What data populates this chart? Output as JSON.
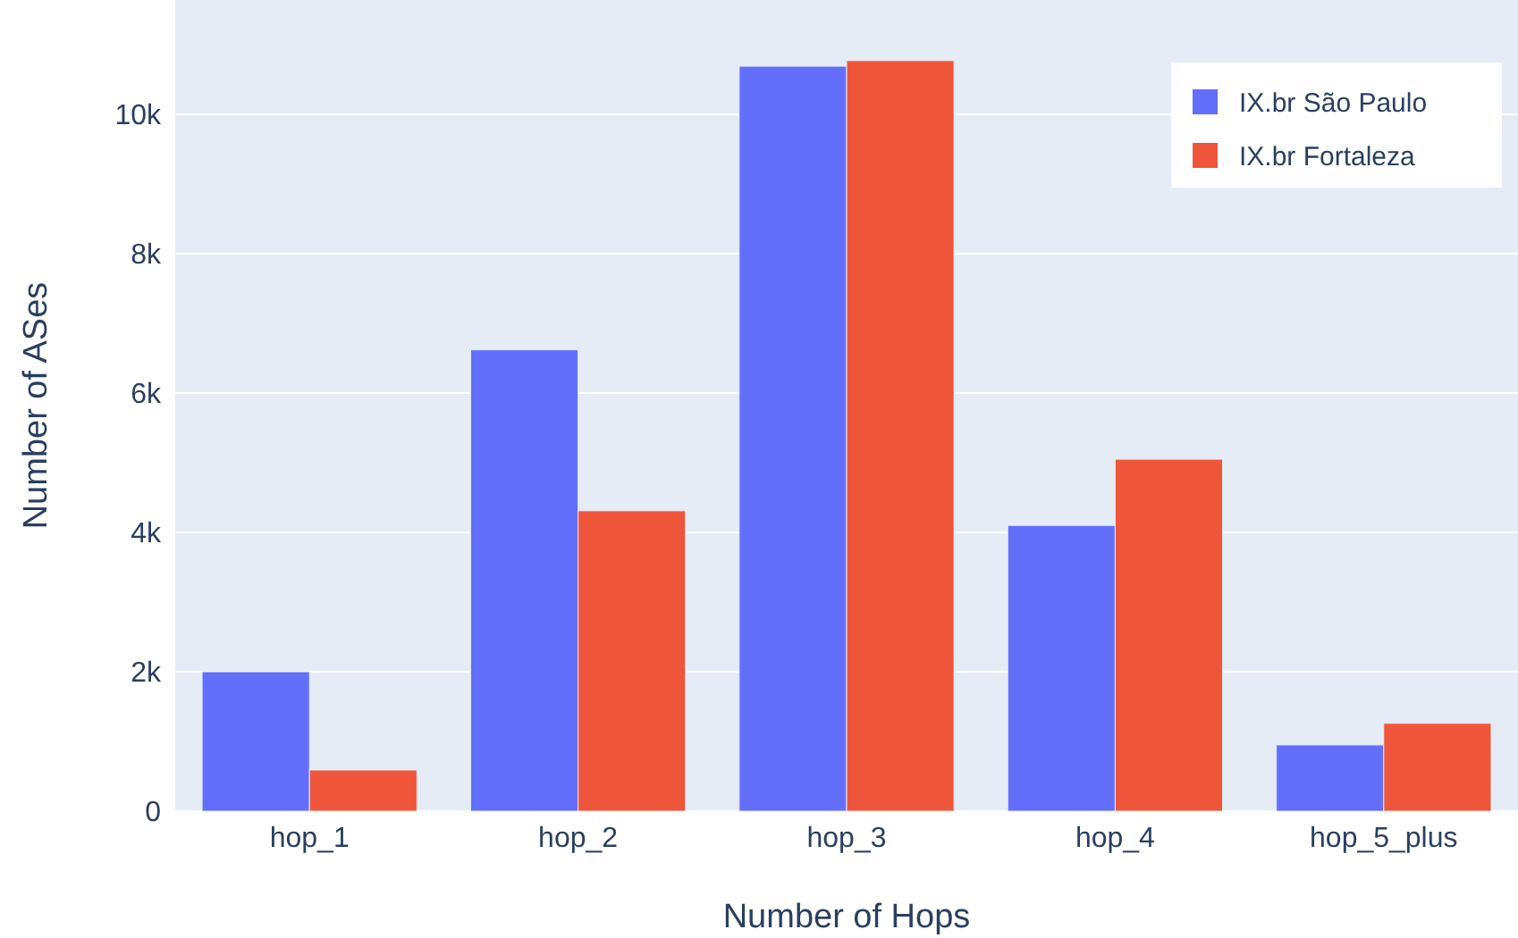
{
  "chart_data": {
    "type": "bar",
    "xlabel": "Number of Hops",
    "ylabel": "Number of ASes",
    "categories": [
      "hop_1",
      "hop_2",
      "hop_3",
      "hop_4",
      "hop_5_plus"
    ],
    "series": [
      {
        "name": "IX.br São Paulo",
        "color": "#636efa",
        "values": [
          2000,
          6620,
          10690,
          4100,
          950
        ]
      },
      {
        "name": "IX.br Fortaleza",
        "color": "#ef553b",
        "values": [
          590,
          4310,
          10770,
          5050,
          1260
        ]
      }
    ],
    "ylim": [
      0,
      11640
    ],
    "yticks": [
      0,
      {
        "value": 2000,
        "label": "2k"
      },
      {
        "value": 4000,
        "label": "4k"
      },
      {
        "value": 6000,
        "label": "6k"
      },
      {
        "value": 8000,
        "label": "8k"
      },
      {
        "value": 10000,
        "label": "10k"
      }
    ],
    "grid": "y",
    "legend": "top right"
  }
}
